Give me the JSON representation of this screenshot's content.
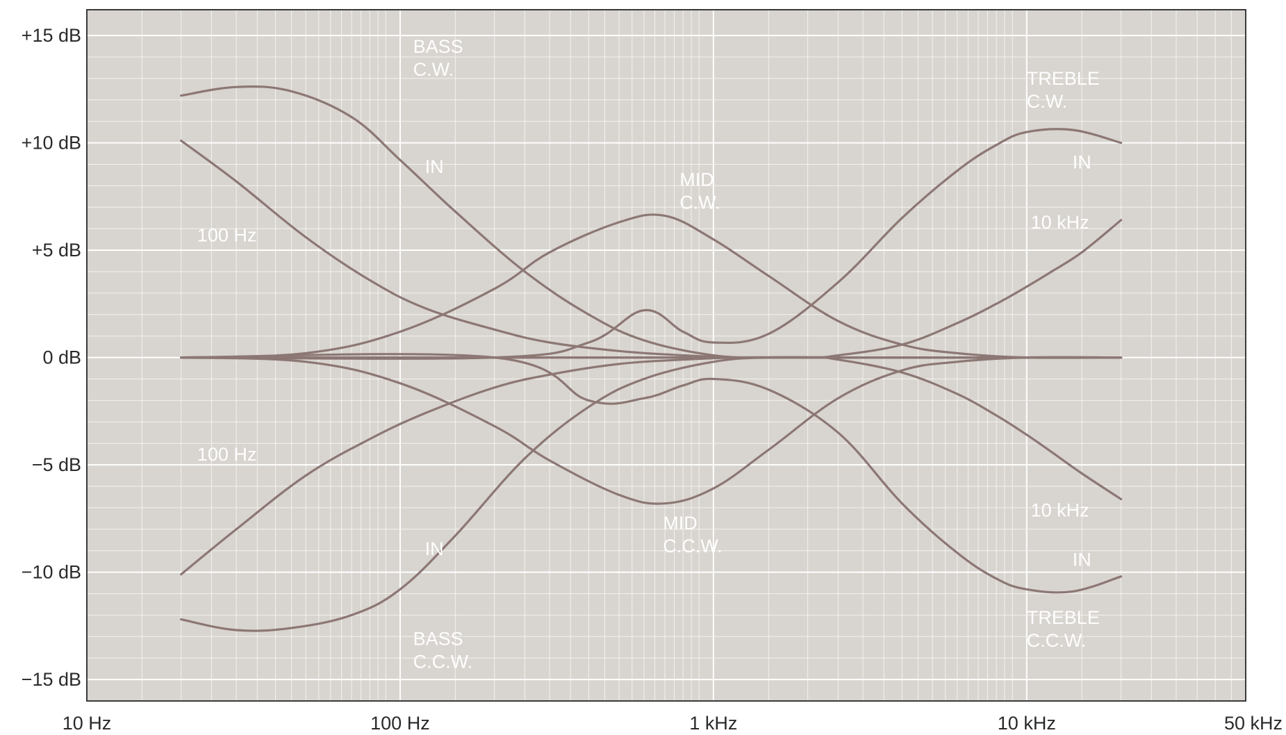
{
  "chart_data": {
    "type": "line",
    "title": "",
    "xlabel": "",
    "ylabel": "",
    "x_scale": "log",
    "xlim": [
      "10 Hz",
      "50 kHz"
    ],
    "xlim_hz": [
      10,
      50000
    ],
    "ylim": [
      -16,
      16.2
    ],
    "unit_x": "Hz",
    "unit_y": "dB",
    "grid": true,
    "legend": "none",
    "colors": {
      "background": "#d8d4cf",
      "grid": "#ffffff",
      "curve": "#8c7774",
      "label": "#ffffff",
      "frame": "#3a3a3a"
    },
    "x_ticks": [
      {
        "value": 10,
        "label": "10 Hz"
      },
      {
        "value": 100,
        "label": "100 Hz"
      },
      {
        "value": 1000,
        "label": "1 kHz"
      },
      {
        "value": 10000,
        "label": "10 kHz"
      },
      {
        "value": 50000,
        "label": "50 kHz"
      }
    ],
    "y_ticks": [
      {
        "value": 15,
        "label": "+15 dB"
      },
      {
        "value": 10,
        "label": "+10 dB"
      },
      {
        "value": 5,
        "label": "+5 dB"
      },
      {
        "value": 0,
        "label": "0 dB"
      },
      {
        "value": -5,
        "label": "−5 dB"
      },
      {
        "value": -10,
        "label": "−10 dB"
      },
      {
        "value": -15,
        "label": "−15 dB"
      }
    ],
    "series": [
      {
        "x": [
          20,
          30,
          45,
          70,
          100,
          150,
          250,
          400,
          600,
          1000,
          1500,
          2500,
          4000,
          6000,
          10000,
          15000,
          20000
        ],
        "y": [
          12.2,
          12.6,
          12.4,
          11.2,
          9.2,
          6.8,
          4.0,
          2.0,
          0.8,
          0.1,
          0,
          0,
          0,
          0,
          0,
          0,
          0
        ]
      },
      {
        "x": [
          20,
          30,
          45,
          70,
          100,
          150,
          250,
          400,
          600,
          1000,
          1500,
          2500,
          4000,
          6000,
          10000,
          15000,
          20000
        ],
        "y": [
          -12.2,
          -12.7,
          -12.6,
          -12.0,
          -10.8,
          -8.3,
          -4.7,
          -2.3,
          -1.0,
          -0.2,
          0,
          0,
          0,
          0,
          0,
          0,
          0
        ]
      },
      {
        "x": [
          20,
          30,
          50,
          80,
          120,
          200,
          300,
          500,
          800,
          1200,
          2000,
          3000,
          5000,
          8000,
          12000,
          20000
        ],
        "y": [
          10.1,
          8.2,
          5.6,
          3.6,
          2.3,
          1.3,
          0.7,
          0.3,
          0.1,
          0,
          0,
          0,
          0,
          0,
          0,
          0
        ]
      },
      {
        "x": [
          20,
          30,
          50,
          80,
          120,
          200,
          300,
          500,
          800,
          1200,
          2000,
          3000,
          5000,
          8000,
          12000,
          20000
        ],
        "y": [
          -10.1,
          -8.0,
          -5.5,
          -3.8,
          -2.6,
          -1.4,
          -0.8,
          -0.3,
          -0.1,
          0,
          0,
          0,
          0,
          0,
          0,
          0
        ]
      },
      {
        "x": [
          20,
          50,
          100,
          200,
          300,
          500,
          700,
          1000,
          1500,
          2500,
          4000,
          6000,
          10000,
          20000
        ],
        "y": [
          0,
          0.2,
          1.2,
          3.2,
          4.9,
          6.3,
          6.6,
          5.5,
          3.8,
          1.7,
          0.6,
          0.2,
          0,
          0
        ]
      },
      {
        "x": [
          20,
          50,
          100,
          200,
          300,
          500,
          700,
          1000,
          1500,
          2500,
          4000,
          6000,
          10000,
          20000
        ],
        "y": [
          0,
          -0.2,
          -1.2,
          -3.2,
          -4.8,
          -6.4,
          -6.8,
          -6.1,
          -4.3,
          -1.9,
          -0.6,
          -0.2,
          0,
          0
        ]
      },
      {
        "x": [
          20,
          200,
          400,
          600,
          800,
          1000,
          1500,
          2500,
          4000,
          6000,
          8000,
          10000,
          14000,
          20000
        ],
        "y": [
          0,
          0,
          0.7,
          2.2,
          1.2,
          0.7,
          1.1,
          3.5,
          6.5,
          8.7,
          9.9,
          10.5,
          10.6,
          10.0
        ]
      },
      {
        "x": [
          20,
          200,
          400,
          600,
          800,
          1000,
          1500,
          2500,
          4000,
          6000,
          8000,
          10000,
          14000,
          20000
        ],
        "y": [
          0,
          0,
          -2.0,
          -1.9,
          -1.3,
          -1.0,
          -1.5,
          -3.5,
          -6.8,
          -9.1,
          -10.3,
          -10.8,
          -10.9,
          -10.2
        ]
      },
      {
        "x": [
          20,
          1000,
          2000,
          2500,
          4000,
          6000,
          8000,
          10000,
          12000,
          15000,
          20000
        ],
        "y": [
          0,
          0,
          0,
          0.1,
          0.6,
          1.6,
          2.5,
          3.3,
          4.0,
          4.9,
          6.4
        ]
      },
      {
        "x": [
          20,
          1000,
          2000,
          2500,
          4000,
          6000,
          8000,
          10000,
          12000,
          15000,
          20000
        ],
        "y": [
          0,
          0,
          0,
          -0.1,
          -0.7,
          -1.7,
          -2.7,
          -3.6,
          -4.4,
          -5.4,
          -6.6
        ]
      }
    ],
    "annotations": [
      {
        "lines": [
          "BASS",
          "C.W."
        ],
        "x": 110,
        "y": 14.2
      },
      {
        "lines": [
          "IN"
        ],
        "x": 120,
        "y": 8.6
      },
      {
        "lines": [
          "100 Hz"
        ],
        "x": 22.5,
        "y": 5.4
      },
      {
        "lines": [
          "MID",
          "C.W."
        ],
        "x": 780,
        "y": 8.0
      },
      {
        "lines": [
          "TREBLE",
          "C.W."
        ],
        "x": 10000,
        "y": 12.7
      },
      {
        "lines": [
          "IN"
        ],
        "x": 14000,
        "y": 8.8
      },
      {
        "lines": [
          "10 kHz"
        ],
        "x": 10300,
        "y": 6.0
      },
      {
        "lines": [
          "100 Hz"
        ],
        "x": 22.5,
        "y": -4.8
      },
      {
        "lines": [
          "10 kHz"
        ],
        "x": 10300,
        "y": -7.4
      },
      {
        "lines": [
          "MID",
          "C.C.W."
        ],
        "x": 690,
        "y": -8.0
      },
      {
        "lines": [
          "IN"
        ],
        "x": 120,
        "y": -9.2
      },
      {
        "lines": [
          "IN"
        ],
        "x": 14000,
        "y": -9.7
      },
      {
        "lines": [
          "TREBLE",
          "C.C.W."
        ],
        "x": 10000,
        "y": -12.4
      },
      {
        "lines": [
          "BASS",
          "C.C.W."
        ],
        "x": 110,
        "y": -13.4
      }
    ]
  }
}
